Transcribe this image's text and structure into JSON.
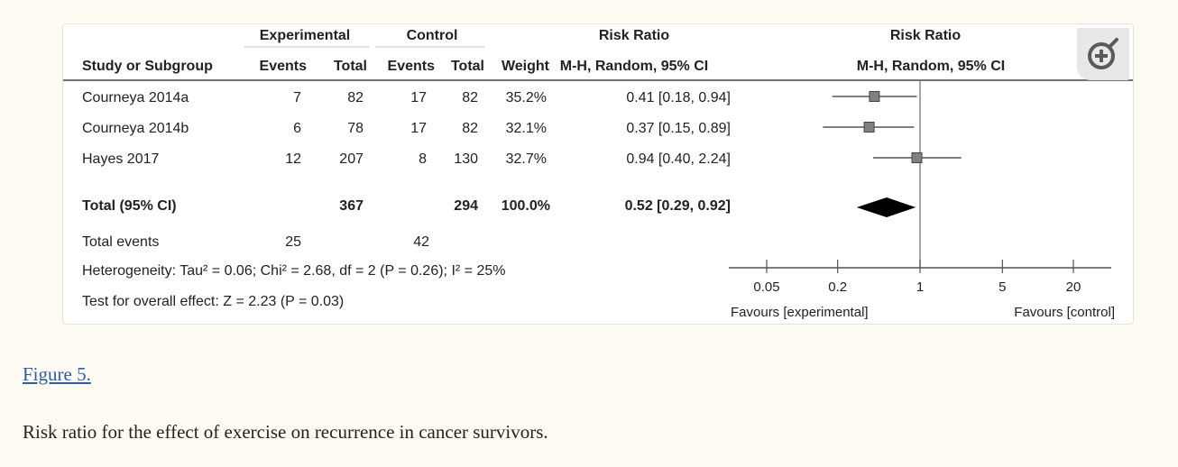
{
  "figure": {
    "link_text": "Figure 5.",
    "caption": "Risk ratio for the effect of exercise on recurrence in cancer survivors.",
    "zoom_icon": "zoom-in-icon"
  },
  "table": {
    "group_headers": {
      "experimental": "Experimental",
      "control": "Control",
      "risk_ratio_left": "Risk Ratio",
      "risk_ratio_right": "Risk Ratio"
    },
    "column_headers": {
      "study": "Study or Subgroup",
      "exp_events": "Events",
      "exp_total": "Total",
      "ctrl_events": "Events",
      "ctrl_total": "Total",
      "weight": "Weight",
      "method_left": "M-H, Random, 95% CI",
      "method_right": "M-H, Random, 95% CI"
    },
    "rows": [
      {
        "study": "Courneya 2014a",
        "exp_events": "7",
        "exp_total": "82",
        "ctrl_events": "17",
        "ctrl_total": "82",
        "weight": "35.2%",
        "ci": "0.41 [0.18, 0.94]"
      },
      {
        "study": "Courneya 2014b",
        "exp_events": "6",
        "exp_total": "78",
        "ctrl_events": "17",
        "ctrl_total": "82",
        "weight": "32.1%",
        "ci": "0.37 [0.15, 0.89]"
      },
      {
        "study": "Hayes 2017",
        "exp_events": "12",
        "exp_total": "207",
        "ctrl_events": "8",
        "ctrl_total": "130",
        "weight": "32.7%",
        "ci": "0.94 [0.40, 2.24]"
      }
    ],
    "total": {
      "label": "Total (95% CI)",
      "exp_total": "367",
      "ctrl_total": "294",
      "weight": "100.0%",
      "ci": "0.52 [0.29, 0.92]"
    },
    "total_events": {
      "label": "Total events",
      "exp_events": "25",
      "ctrl_events": "42"
    },
    "heterogeneity": "Heterogeneity: Tau² = 0.06; Chi² = 2.68, df = 2 (P = 0.26); I² = 25%",
    "overall_effect": "Test for overall effect: Z = 2.23 (P = 0.03)"
  },
  "chart_data": {
    "type": "forest",
    "scale": "log",
    "xlim": [
      0.05,
      20
    ],
    "ticks": [
      0.05,
      0.2,
      1,
      5,
      20
    ],
    "tick_labels": [
      "0.05",
      "0.2",
      "1",
      "5",
      "20"
    ],
    "xlabel_left": "Favours [experimental]",
    "xlabel_right": "Favours [control]",
    "studies": [
      {
        "name": "Courneya 2014a",
        "estimate": 0.41,
        "lower": 0.18,
        "upper": 0.94,
        "weight": 35.2
      },
      {
        "name": "Courneya 2014b",
        "estimate": 0.37,
        "lower": 0.15,
        "upper": 0.89,
        "weight": 32.1
      },
      {
        "name": "Hayes 2017",
        "estimate": 0.94,
        "lower": 0.4,
        "upper": 2.24,
        "weight": 32.7
      }
    ],
    "pooled": {
      "estimate": 0.52,
      "lower": 0.29,
      "upper": 0.92
    },
    "colors": {
      "marker": "#808080",
      "diamond": "#000000",
      "line": "#555555"
    }
  }
}
